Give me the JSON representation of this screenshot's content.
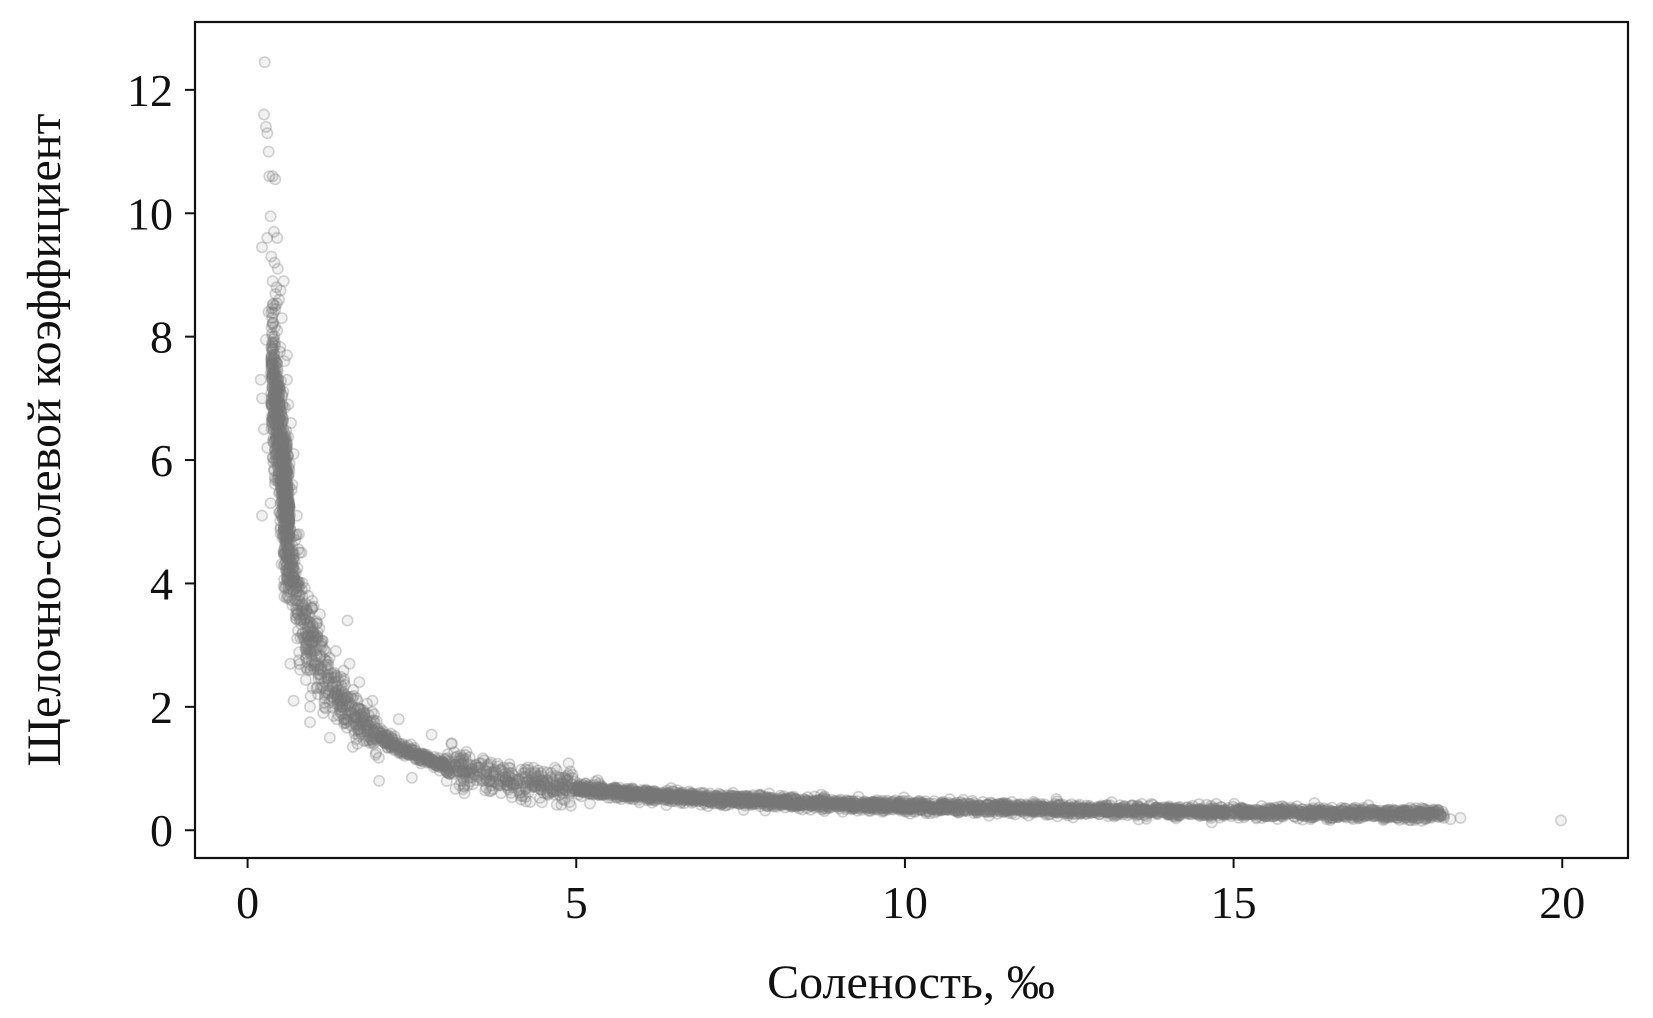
{
  "chart_data": {
    "type": "scatter",
    "xlabel": "Соленость, ‰",
    "ylabel": "Щелочно-солевой коэффициент",
    "xlim": [
      -0.8,
      21.0
    ],
    "ylim": [
      -0.45,
      13.1
    ],
    "xticks": [
      0,
      5,
      10,
      15,
      20
    ],
    "yticks": [
      0,
      2,
      4,
      6,
      8,
      10,
      12
    ],
    "grid": false,
    "marker_color": "#7a7a7a",
    "series": [
      {
        "points": [
          [
            0.26,
            12.45
          ],
          [
            0.25,
            11.6
          ],
          [
            0.28,
            11.4
          ],
          [
            0.3,
            11.3
          ],
          [
            0.32,
            11.0
          ],
          [
            0.33,
            10.6
          ],
          [
            0.38,
            10.6
          ],
          [
            0.42,
            10.55
          ],
          [
            0.35,
            9.95
          ],
          [
            0.3,
            9.6
          ],
          [
            0.4,
            9.7
          ],
          [
            0.45,
            9.6
          ],
          [
            0.22,
            9.45
          ],
          [
            0.36,
            9.3
          ],
          [
            0.41,
            9.2
          ],
          [
            0.46,
            9.1
          ],
          [
            0.38,
            8.9
          ],
          [
            0.44,
            8.8
          ],
          [
            0.5,
            8.75
          ],
          [
            0.55,
            8.9
          ],
          [
            0.48,
            8.6
          ],
          [
            0.42,
            8.5
          ],
          [
            0.32,
            8.4
          ],
          [
            0.52,
            8.3
          ],
          [
            0.45,
            8.1
          ],
          [
            0.38,
            8.0
          ],
          [
            0.28,
            7.95
          ],
          [
            0.6,
            7.7
          ],
          [
            0.56,
            7.6
          ],
          [
            0.35,
            7.4
          ],
          [
            0.2,
            7.3
          ],
          [
            0.22,
            7.0
          ],
          [
            0.6,
            7.3
          ],
          [
            0.62,
            6.9
          ],
          [
            0.66,
            6.6
          ],
          [
            0.25,
            6.5
          ],
          [
            0.3,
            6.2
          ],
          [
            0.7,
            6.1
          ],
          [
            0.68,
            5.6
          ],
          [
            0.22,
            5.1
          ],
          [
            0.35,
            5.3
          ],
          [
            0.75,
            5.1
          ],
          [
            0.78,
            4.8
          ],
          [
            0.82,
            4.5
          ],
          [
            0.6,
            4.3
          ],
          [
            0.7,
            3.9
          ],
          [
            0.92,
            3.8
          ],
          [
            0.98,
            3.6
          ],
          [
            1.1,
            3.5
          ],
          [
            1.52,
            3.4
          ],
          [
            0.65,
            2.7
          ],
          [
            0.8,
            2.6
          ],
          [
            1.05,
            2.3
          ],
          [
            0.7,
            2.1
          ],
          [
            0.95,
            2.0
          ],
          [
            1.15,
            1.9
          ],
          [
            1.35,
            2.5
          ],
          [
            1.55,
            2.7
          ],
          [
            1.7,
            2.4
          ],
          [
            1.9,
            2.1
          ],
          [
            0.95,
            1.75
          ],
          [
            1.25,
            1.5
          ],
          [
            1.6,
            1.35
          ],
          [
            2.3,
            1.8
          ],
          [
            2.8,
            1.55
          ],
          [
            3.1,
            1.4
          ],
          [
            2.0,
            0.8
          ],
          [
            2.5,
            0.85
          ],
          [
            3.3,
            0.6
          ],
          [
            3.7,
            1.1
          ],
          [
            4.5,
            0.95
          ],
          [
            5.2,
            0.7
          ],
          [
            6.1,
            0.62
          ],
          [
            7.4,
            0.55
          ],
          [
            8.2,
            0.42
          ],
          [
            9.0,
            0.35
          ],
          [
            10.3,
            0.4
          ],
          [
            11.5,
            0.3
          ],
          [
            12.7,
            0.28
          ],
          [
            14.3,
            0.27
          ],
          [
            15.8,
            0.25
          ],
          [
            16.9,
            0.23
          ],
          [
            17.6,
            0.22
          ],
          [
            18.2,
            0.2
          ],
          [
            18.3,
            0.18
          ],
          [
            18.45,
            0.2
          ],
          [
            19.98,
            0.16
          ]
        ]
      }
    ]
  }
}
